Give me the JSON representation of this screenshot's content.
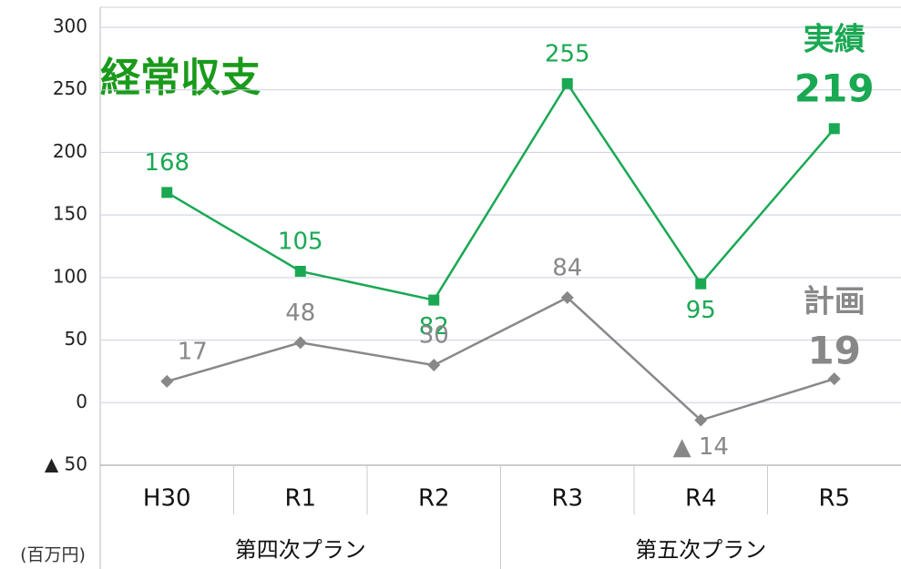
{
  "chart_data": {
    "type": "line",
    "title": "経常収支",
    "unit": "(百万円)",
    "categories": [
      "H30",
      "R1",
      "R2",
      "R3",
      "R4",
      "R5"
    ],
    "group_labels": [
      "第四次プラン",
      "第五次プラン"
    ],
    "series": [
      {
        "name": "実績",
        "color": "#1aa853",
        "marker": "square",
        "values": [
          168,
          105,
          82,
          255,
          95,
          219
        ]
      },
      {
        "name": "計画",
        "color": "#888888",
        "marker": "diamond",
        "values": [
          17,
          48,
          30,
          84,
          -14,
          19
        ],
        "value_labels": [
          "17",
          "48",
          "30",
          "84",
          "▲ 14",
          "19"
        ]
      }
    ],
    "ylim": [
      -50,
      300
    ],
    "yticks": [
      {
        "value": -50,
        "label": "▲ 50"
      },
      0,
      50,
      100,
      150,
      200,
      250,
      300
    ],
    "grid": true
  }
}
